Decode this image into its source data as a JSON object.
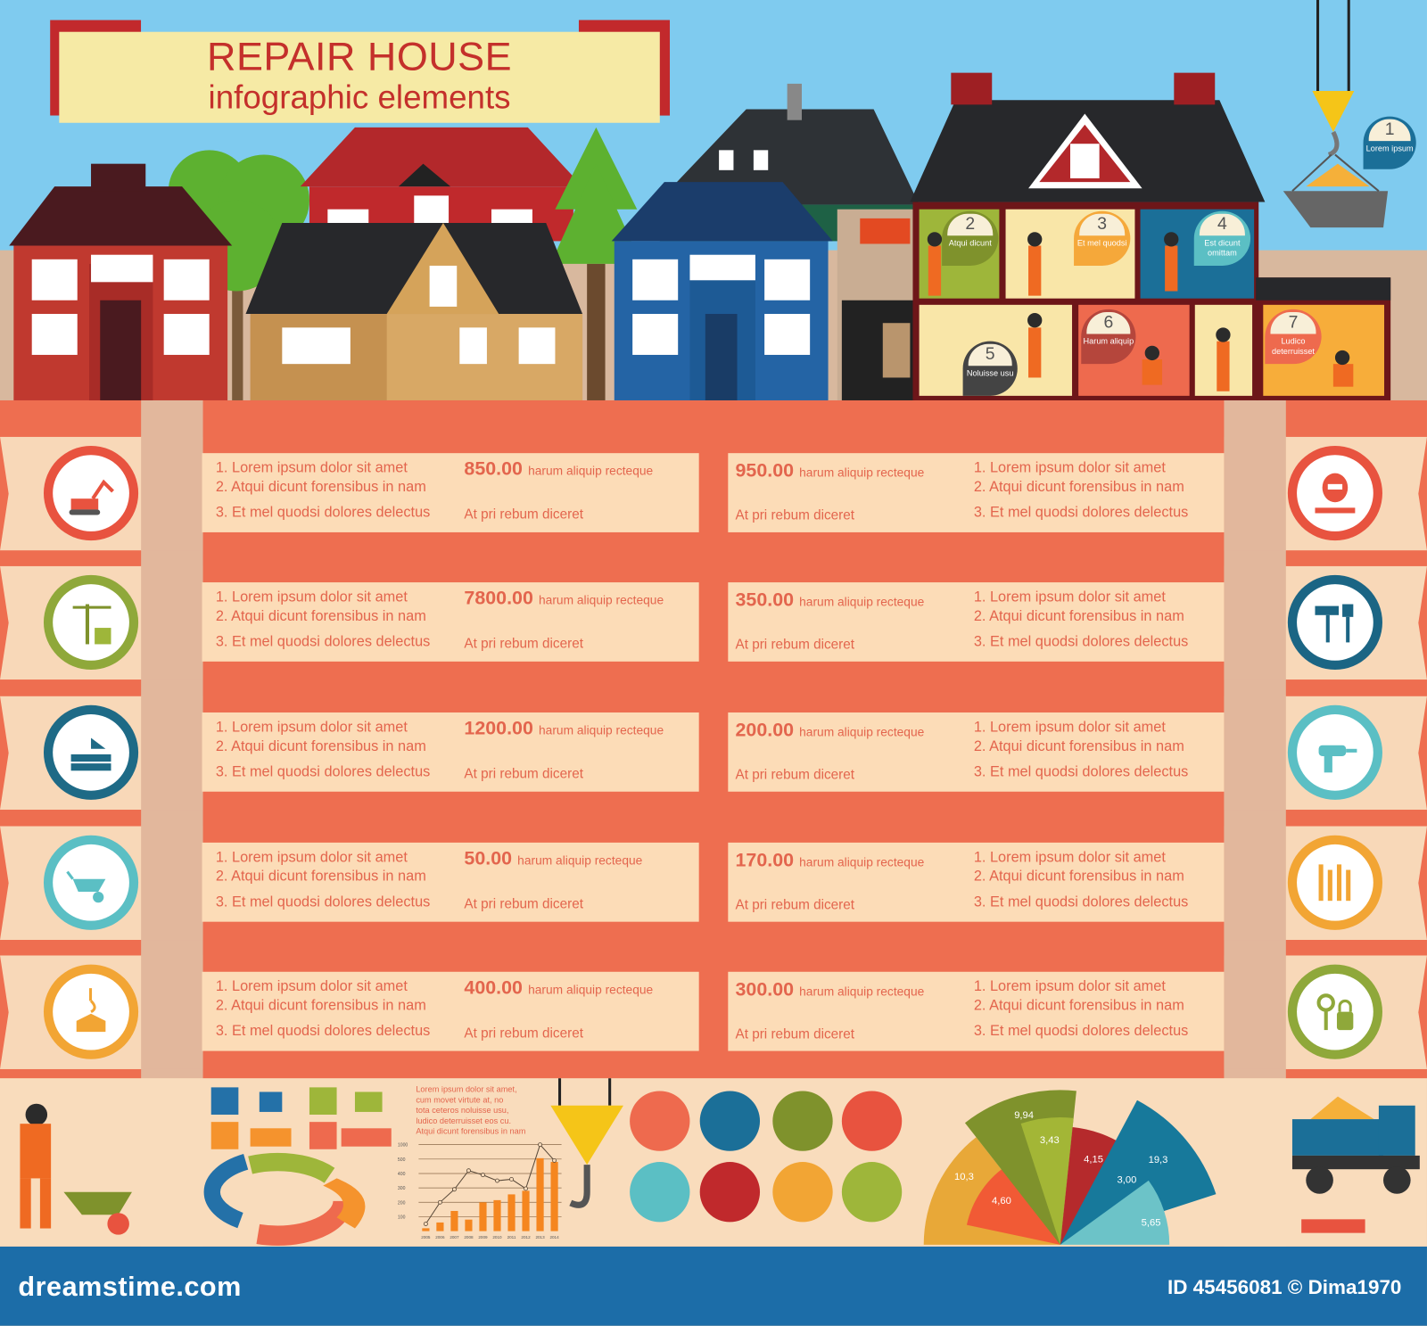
{
  "header": {
    "title": "REPAIR HOUSE",
    "subtitle": "infographic elements"
  },
  "colors": {
    "sky": "#7fcbef",
    "salmon": "#ee6e50",
    "beige": "#fcdcb7",
    "text": "#e3654d",
    "footer": "#1c6da8",
    "banner_red": "#c2292c",
    "banner_yellow": "#f6eaa5"
  },
  "rooms": [
    {
      "num": "1",
      "label": "Lorem ipsum"
    },
    {
      "num": "2",
      "label": "Atqui dicunt"
    },
    {
      "num": "3",
      "label": "Et mel quodsi"
    },
    {
      "num": "4",
      "label": "Est dicunt omittam"
    },
    {
      "num": "5",
      "label": "Noluisse usu"
    },
    {
      "num": "6",
      "label": "Harum aliquip"
    },
    {
      "num": "7",
      "label": "Ludico deterruisset"
    }
  ],
  "list": {
    "item1": "1. Lorem ipsum dolor sit amet",
    "item2": "2. Atqui dicunt forensibus in nam",
    "item3": "3. Et mel quodsi dolores delectus",
    "price_suffix": "harum aliquip recteque",
    "note": "At pri rebum diceret"
  },
  "rows": [
    {
      "left": {
        "price": "850.00",
        "icon": "excavator-icon",
        "color": "#e8533f"
      },
      "right": {
        "price": "950.00",
        "icon": "welding-mask-icon",
        "color": "#e8533f"
      }
    },
    {
      "left": {
        "price": "7800.00",
        "icon": "construction-crane-icon",
        "color": "#8fa83a"
      },
      "right": {
        "price": "350.00",
        "icon": "paint-roller-brush-icon",
        "color": "#1b6584"
      }
    },
    {
      "left": {
        "price": "1200.00",
        "icon": "bricks-trowel-icon",
        "color": "#1e6a86"
      },
      "right": {
        "price": "200.00",
        "icon": "drill-icon",
        "color": "#5bbfc4"
      }
    },
    {
      "left": {
        "price": "50.00",
        "icon": "wheelbarrow-icon",
        "color": "#5bbfc4"
      },
      "right": {
        "price": "170.00",
        "icon": "tools-icon",
        "color": "#f2a534"
      }
    },
    {
      "left": {
        "price": "400.00",
        "icon": "crane-hook-load-icon",
        "color": "#f2a534"
      },
      "right": {
        "price": "300.00",
        "icon": "keys-lock-icon",
        "color": "#8fa83a"
      }
    }
  ],
  "bottom": {
    "paragraph": [
      "Lorem ipsum dolor sit amet,",
      "cum     movet  virtute at, no",
      "tota ceteros noluisse usu,",
      "ludico deterruisset eos cu.",
      "Atqui dicunt forensibus in nam"
    ]
  },
  "chart_data": [
    {
      "type": "bar",
      "categories": [
        "2005",
        "2006",
        "2007",
        "2008",
        "2009",
        "2010",
        "2011",
        "2012",
        "2013",
        "2014"
      ],
      "ytick_labels": [
        "100",
        "200",
        "300",
        "400",
        "500",
        "1000"
      ],
      "series": [
        {
          "kind": "bar",
          "values": [
            20,
            60,
            140,
            80,
            200,
            215,
            255,
            280,
            530,
            480
          ]
        },
        {
          "kind": "line",
          "values": [
            50,
            200,
            290,
            420,
            390,
            350,
            360,
            295,
            1000,
            490
          ]
        }
      ],
      "grid": true
    },
    {
      "type": "pie",
      "variant": "polar-area-semicircle",
      "values": [
        {
          "label": "10,3",
          "color": "#e8a838"
        },
        {
          "label": "4,60",
          "color": "#f15a35"
        },
        {
          "label": "9,94",
          "color": "#7f922c"
        },
        {
          "label": "3,43",
          "color": "#a3b636"
        },
        {
          "label": "4,15",
          "color": "#b52a2c"
        },
        {
          "label": "3,00",
          "color": "#ee6a4e"
        },
        {
          "label": "19,3",
          "color": "#17799b"
        },
        {
          "label": "5,65",
          "color": "#6cc3c8"
        }
      ]
    }
  ],
  "footer": {
    "brand": "dreamstime.com",
    "id": "ID 45456081 © Dima1970"
  }
}
